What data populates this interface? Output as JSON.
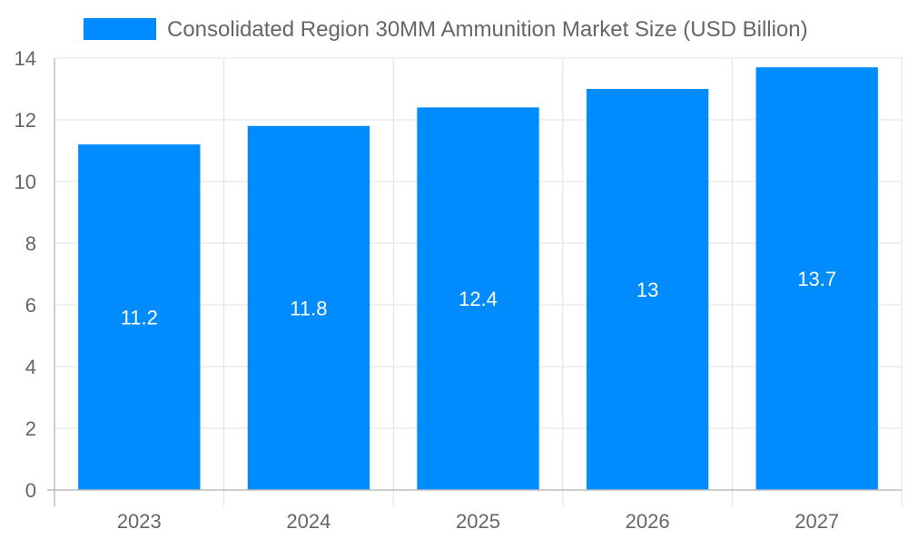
{
  "chart_data": {
    "type": "bar",
    "categories": [
      "2023",
      "2024",
      "2025",
      "2026",
      "2027"
    ],
    "series": [
      {
        "name": "Consolidated Region 30MM Ammunition Market Size (USD Billion)",
        "values": [
          11.2,
          11.8,
          12.4,
          13,
          13.7
        ],
        "color": "#008cff"
      }
    ],
    "data_labels": [
      "11.2",
      "11.8",
      "12.4",
      "13",
      "13.7"
    ],
    "ylim": [
      0,
      14
    ],
    "yticks": [
      0,
      2,
      4,
      6,
      8,
      10,
      12,
      14
    ],
    "ytick_labels": [
      "0",
      "2",
      "4",
      "6",
      "8",
      "10",
      "12",
      "14"
    ],
    "grid": true,
    "legend_position": "top-center"
  }
}
